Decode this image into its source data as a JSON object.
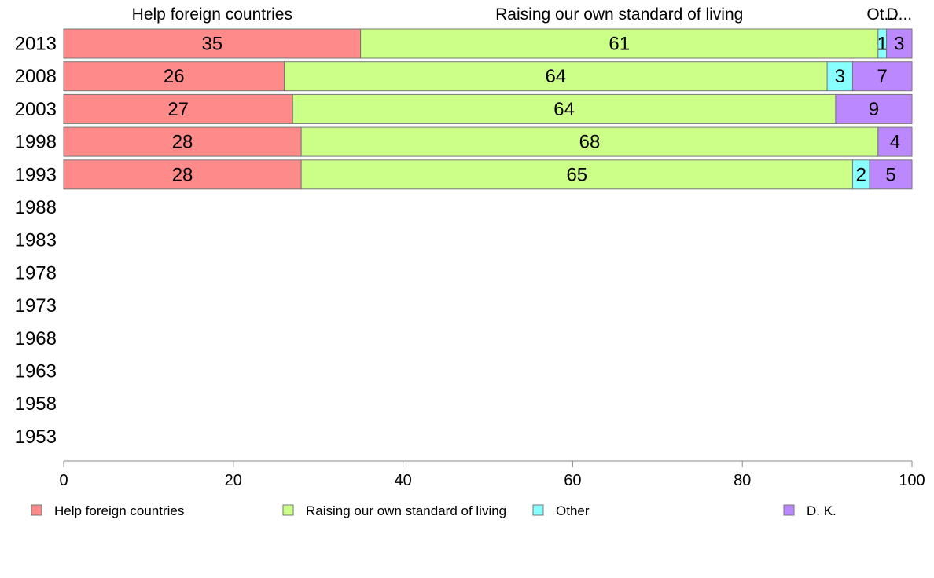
{
  "chart_data": {
    "type": "bar",
    "orientation": "horizontal",
    "stacked": true,
    "categories": [
      "2013",
      "2008",
      "2003",
      "1998",
      "1993",
      "1988",
      "1983",
      "1978",
      "1973",
      "1968",
      "1963",
      "1958",
      "1953"
    ],
    "series": [
      {
        "name": "Help foreign countries",
        "color": "#ff8a8a",
        "values": [
          35,
          26,
          27,
          28,
          28,
          null,
          null,
          null,
          null,
          null,
          null,
          null,
          null
        ]
      },
      {
        "name": "Raising our own standard of living",
        "color": "#ccff88",
        "values": [
          61,
          64,
          64,
          68,
          65,
          null,
          null,
          null,
          null,
          null,
          null,
          null,
          null
        ]
      },
      {
        "name": "Other",
        "color": "#88ffff",
        "values": [
          1,
          3,
          0,
          0,
          2,
          null,
          null,
          null,
          null,
          null,
          null,
          null,
          null
        ]
      },
      {
        "name": "D. K.",
        "color": "#bb88ff",
        "values": [
          3,
          7,
          9,
          4,
          5,
          null,
          null,
          null,
          null,
          null,
          null,
          null,
          null
        ]
      }
    ],
    "top_labels": [
      "Help foreign countries",
      "Raising our own standard of living",
      "Ot...",
      "D..."
    ],
    "xlim": [
      0,
      100
    ],
    "xticks": [
      "0",
      "20",
      "40",
      "60",
      "80",
      "100"
    ],
    "grid": false,
    "legend_position": "bottom"
  }
}
